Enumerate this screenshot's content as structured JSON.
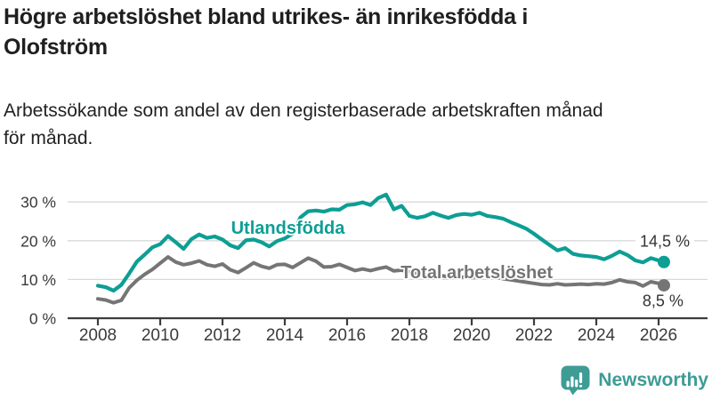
{
  "title": {
    "line1": "Högre arbetslöshet bland utrikes- än inrikesfödda i",
    "line2": "Olofström"
  },
  "subtitle": {
    "line1": "Arbetssökande som andel av den registerbaserade arbetskraften månad",
    "line2": "för månad."
  },
  "footer": {
    "brand": "Newsworthy",
    "logo_icon": "bar-chart-speech-bubble-icon",
    "brand_color": "#3E9C95"
  },
  "colors": {
    "background": "#ffffff",
    "title_text": "#1f1f1f",
    "axis_text": "#3a3a3a",
    "axis_line": "#3d3d3d",
    "gridline": "#d9d9d9",
    "value_label_text": "#333333",
    "series_utlandsfodda": "#0D9E94",
    "series_total": "#757575"
  },
  "chart_data": {
    "type": "line",
    "title": "Högre arbetslöshet bland utrikes- än inrikesfödda i Olofström",
    "subtitle": "Arbetssökande som andel av den registerbaserade arbetskraften månad för månad.",
    "xlabel": "",
    "ylabel": "",
    "grid": "horizontal",
    "legend_position": "inline-labels",
    "x_unit": "decimal_year",
    "y_unit": "percent",
    "xlim": [
      2007.0,
      2026.6
    ],
    "ylim": [
      0,
      33.5
    ],
    "xticks": [
      2008,
      2010,
      2012,
      2014,
      2016,
      2018,
      2020,
      2022,
      2024,
      2026
    ],
    "yticks": [
      {
        "value": 0,
        "label": "0 %"
      },
      {
        "value": 10,
        "label": "10 %"
      },
      {
        "value": 20,
        "label": "20 %"
      },
      {
        "value": 30,
        "label": "30 %"
      }
    ],
    "x": [
      2008,
      2008.25,
      2008.5,
      2008.75,
      2009,
      2009.25,
      2009.5,
      2009.75,
      2010,
      2010.25,
      2010.5,
      2010.75,
      2011,
      2011.25,
      2011.5,
      2011.75,
      2012,
      2012.25,
      2012.5,
      2012.75,
      2013,
      2013.25,
      2013.5,
      2013.75,
      2014,
      2014.25,
      2014.5,
      2014.75,
      2015,
      2015.25,
      2015.5,
      2015.75,
      2016,
      2016.25,
      2016.5,
      2016.75,
      2017,
      2017.25,
      2017.5,
      2017.75,
      2018,
      2018.25,
      2018.5,
      2018.75,
      2019,
      2019.25,
      2019.5,
      2019.75,
      2020,
      2020.25,
      2020.5,
      2020.75,
      2021,
      2021.25,
      2021.5,
      2021.75,
      2022,
      2022.25,
      2022.5,
      2022.75,
      2023,
      2023.25,
      2023.5,
      2023.75,
      2024,
      2024.25,
      2024.5,
      2024.75,
      2025,
      2025.25,
      2025.5,
      2025.75,
      2026,
      2026.17
    ],
    "series": [
      {
        "name": "Utlandsfödda",
        "color": "#0D9E94",
        "line_width": 4.2,
        "values": [
          8.4,
          8.0,
          7.1,
          8.6,
          11.5,
          14.6,
          16.4,
          18.3,
          19.1,
          21.2,
          19.6,
          17.9,
          20.4,
          21.6,
          20.7,
          21.1,
          20.3,
          18.8,
          18.1,
          20.1,
          20.3,
          19.6,
          18.5,
          19.9,
          20.6,
          21.8,
          26.0,
          27.6,
          27.8,
          27.5,
          28.1,
          28.0,
          29.2,
          29.4,
          29.9,
          29.2,
          31.0,
          31.9,
          28.1,
          29.0,
          26.4,
          25.9,
          26.3,
          27.2,
          26.5,
          25.9,
          26.6,
          26.9,
          26.7,
          27.2,
          26.4,
          26.1,
          25.7,
          24.8,
          24.0,
          23.1,
          21.8,
          20.3,
          18.9,
          17.5,
          18.1,
          16.6,
          16.2,
          16.0,
          15.8,
          15.2,
          16.1,
          17.2,
          16.3,
          14.9,
          14.4,
          15.5,
          14.9,
          14.5
        ],
        "end_dot": true,
        "end_label": "14,5 %",
        "end_label_pos": {
          "x": 2026.2,
          "y": 20.0
        },
        "name_label_pos": {
          "x": 2014.1,
          "y": 23.4
        }
      },
      {
        "name": "Total arbetslöshet",
        "color": "#757575",
        "line_width": 4.0,
        "values": [
          5.0,
          4.7,
          4.0,
          4.6,
          7.8,
          9.8,
          11.3,
          12.6,
          14.2,
          15.8,
          14.5,
          13.8,
          14.2,
          14.8,
          13.8,
          13.4,
          14.0,
          12.5,
          11.8,
          13.0,
          14.3,
          13.4,
          12.9,
          13.8,
          13.9,
          13.1,
          14.3,
          15.5,
          14.7,
          13.2,
          13.3,
          13.9,
          13.1,
          12.3,
          12.7,
          12.3,
          12.8,
          13.2,
          12.2,
          12.4,
          11.9,
          11.6,
          11.3,
          11.5,
          11.0,
          10.7,
          10.5,
          10.6,
          10.4,
          11.2,
          11.0,
          10.7,
          10.2,
          9.9,
          9.6,
          9.3,
          9.0,
          8.7,
          8.6,
          8.9,
          8.6,
          8.7,
          8.8,
          8.7,
          8.9,
          8.8,
          9.2,
          9.9,
          9.4,
          9.2,
          8.3,
          9.4,
          9.0,
          8.5
        ],
        "end_dot": true,
        "end_label": "8,5 %",
        "end_label_pos": {
          "x": 2026.14,
          "y": 4.6
        },
        "name_label_pos": {
          "x": 2020.16,
          "y": 11.9
        }
      }
    ]
  }
}
